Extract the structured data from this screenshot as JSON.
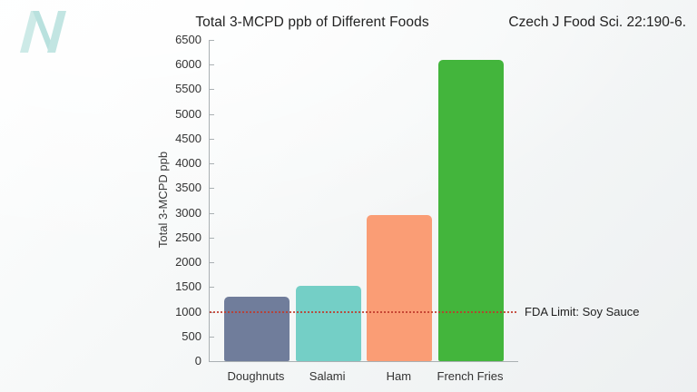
{
  "logo": {
    "icon": "nutritionfacts-n-icon",
    "color": "#c2e5e2"
  },
  "header": {
    "title": "Total 3-MCPD ppb of Different Foods",
    "citation": "Czech J Food Sci. 22:190-6."
  },
  "chart_data": {
    "type": "bar",
    "title": "Total 3-MCPD ppb of Different Foods",
    "categories": [
      "Doughnuts",
      "Salami",
      "Ham",
      "French Fries"
    ],
    "values": [
      1300,
      1520,
      2950,
      6100
    ],
    "bar_colors": [
      "#707d9b",
      "#74cfc6",
      "#fa9d75",
      "#43b53c"
    ],
    "xlabel": "",
    "ylabel": "Total 3-MCPD ppb",
    "ylim": [
      0,
      6500
    ],
    "ytick_step": 500,
    "grid": false,
    "legend": "none",
    "reference_line": {
      "value": 1000,
      "label": "FDA Limit: Soy Sauce",
      "color": "#c0392b",
      "style": "dotted"
    }
  },
  "colors": {
    "axis": "#aab0b3",
    "title_text": "#222222",
    "tick_text": "#333333",
    "background_tint": "#edf0f1"
  }
}
